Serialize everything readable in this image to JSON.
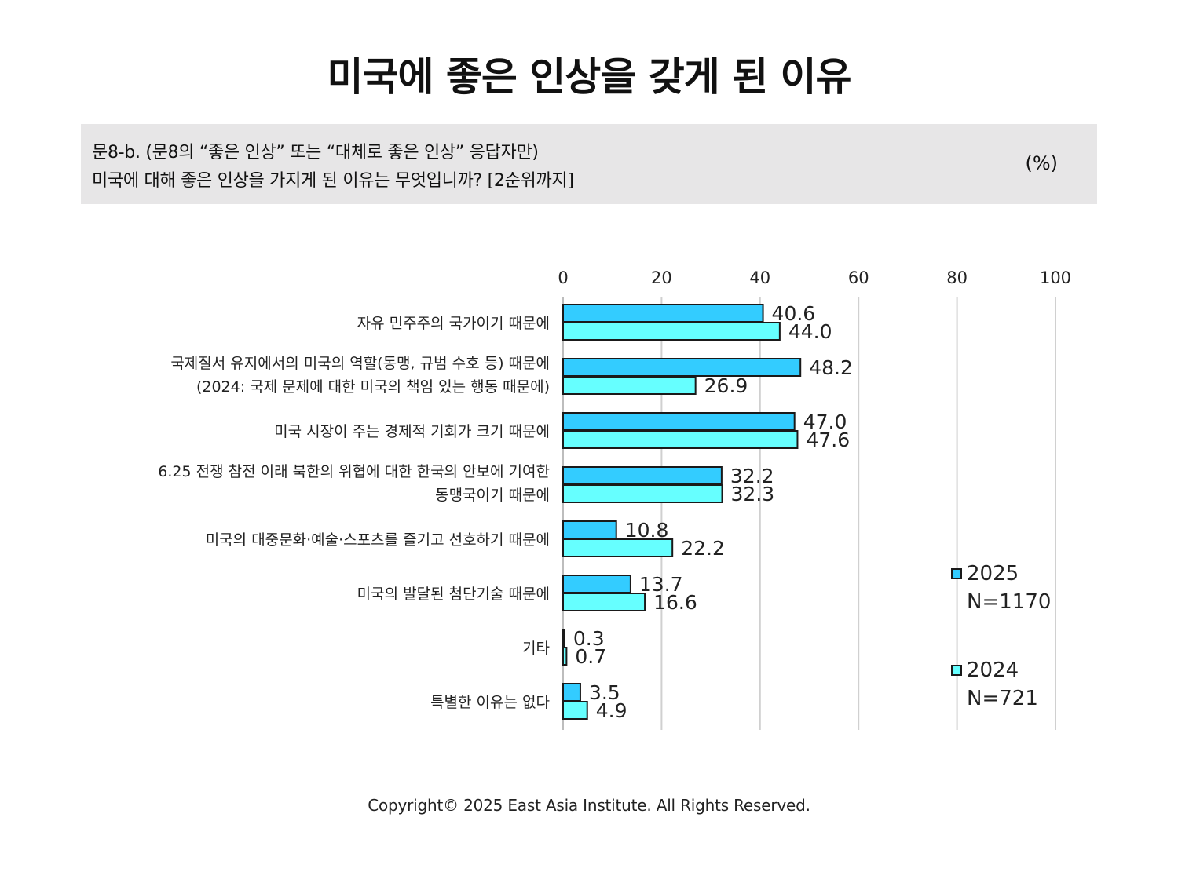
{
  "title": "미국에 좋은 인상을 갖게 된 이유",
  "question": {
    "line1": "문8-b. (문8의 “좋은 인상” 또는 “대체로 좋은 인상” 응답자만)",
    "line2": "미국에 대해 좋은 인상을 가지게 된 이유는 무엇입니까? [2순위까지]",
    "unit": "(%)"
  },
  "chart_data": {
    "type": "bar",
    "orientation": "horizontal",
    "categories": [
      [
        "자유 민주주의 국가이기 때문에"
      ],
      [
        "국제질서 유지에서의 미국의 역할(동맹, 규범 수호 등) 때문에",
        "(2024: 국제 문제에 대한 미국의 책임 있는 행동 때문에)"
      ],
      [
        "미국 시장이 주는 경제적 기회가 크기 때문에"
      ],
      [
        "6.25 전쟁 참전 이래 북한의 위협에 대한 한국의 안보에 기여한",
        "동맹국이기 때문에"
      ],
      [
        "미국의 대중문화·예술·스포츠를 즐기고 선호하기 때문에"
      ],
      [
        "미국의 발달된 첨단기술 때문에"
      ],
      [
        "기타"
      ],
      [
        "특별한 이유는 없다"
      ]
    ],
    "series": [
      {
        "name": "2025",
        "n_label": "N=1170",
        "color": "#33ccff",
        "values": [
          40.6,
          48.2,
          47.0,
          32.2,
          10.8,
          13.7,
          0.3,
          3.5
        ],
        "labels": [
          "40.6",
          "48.2",
          "47.0",
          "32.2",
          "10.8",
          "13.7",
          "0.3",
          "3.5"
        ]
      },
      {
        "name": "2024",
        "n_label": "N=721",
        "color": "#66ffff",
        "values": [
          44.0,
          26.9,
          47.6,
          32.3,
          22.2,
          16.6,
          0.7,
          4.9
        ],
        "labels": [
          "44.0",
          "26.9",
          "47.6",
          "32.3",
          "22.2",
          "16.6",
          "0.7",
          "4.9"
        ]
      }
    ],
    "xlim": [
      0,
      100
    ],
    "xticks": [
      "0",
      "20",
      "40",
      "60",
      "80",
      "100"
    ],
    "xtick_values": [
      0,
      20,
      40,
      60,
      80,
      100
    ],
    "grid": true,
    "legend_position": "right",
    "bar_outline_color": "#1a1a1a",
    "grid_color": "#d0d0d0"
  },
  "copyright": "Copyright© 2025 East Asia Institute. All Rights Reserved."
}
